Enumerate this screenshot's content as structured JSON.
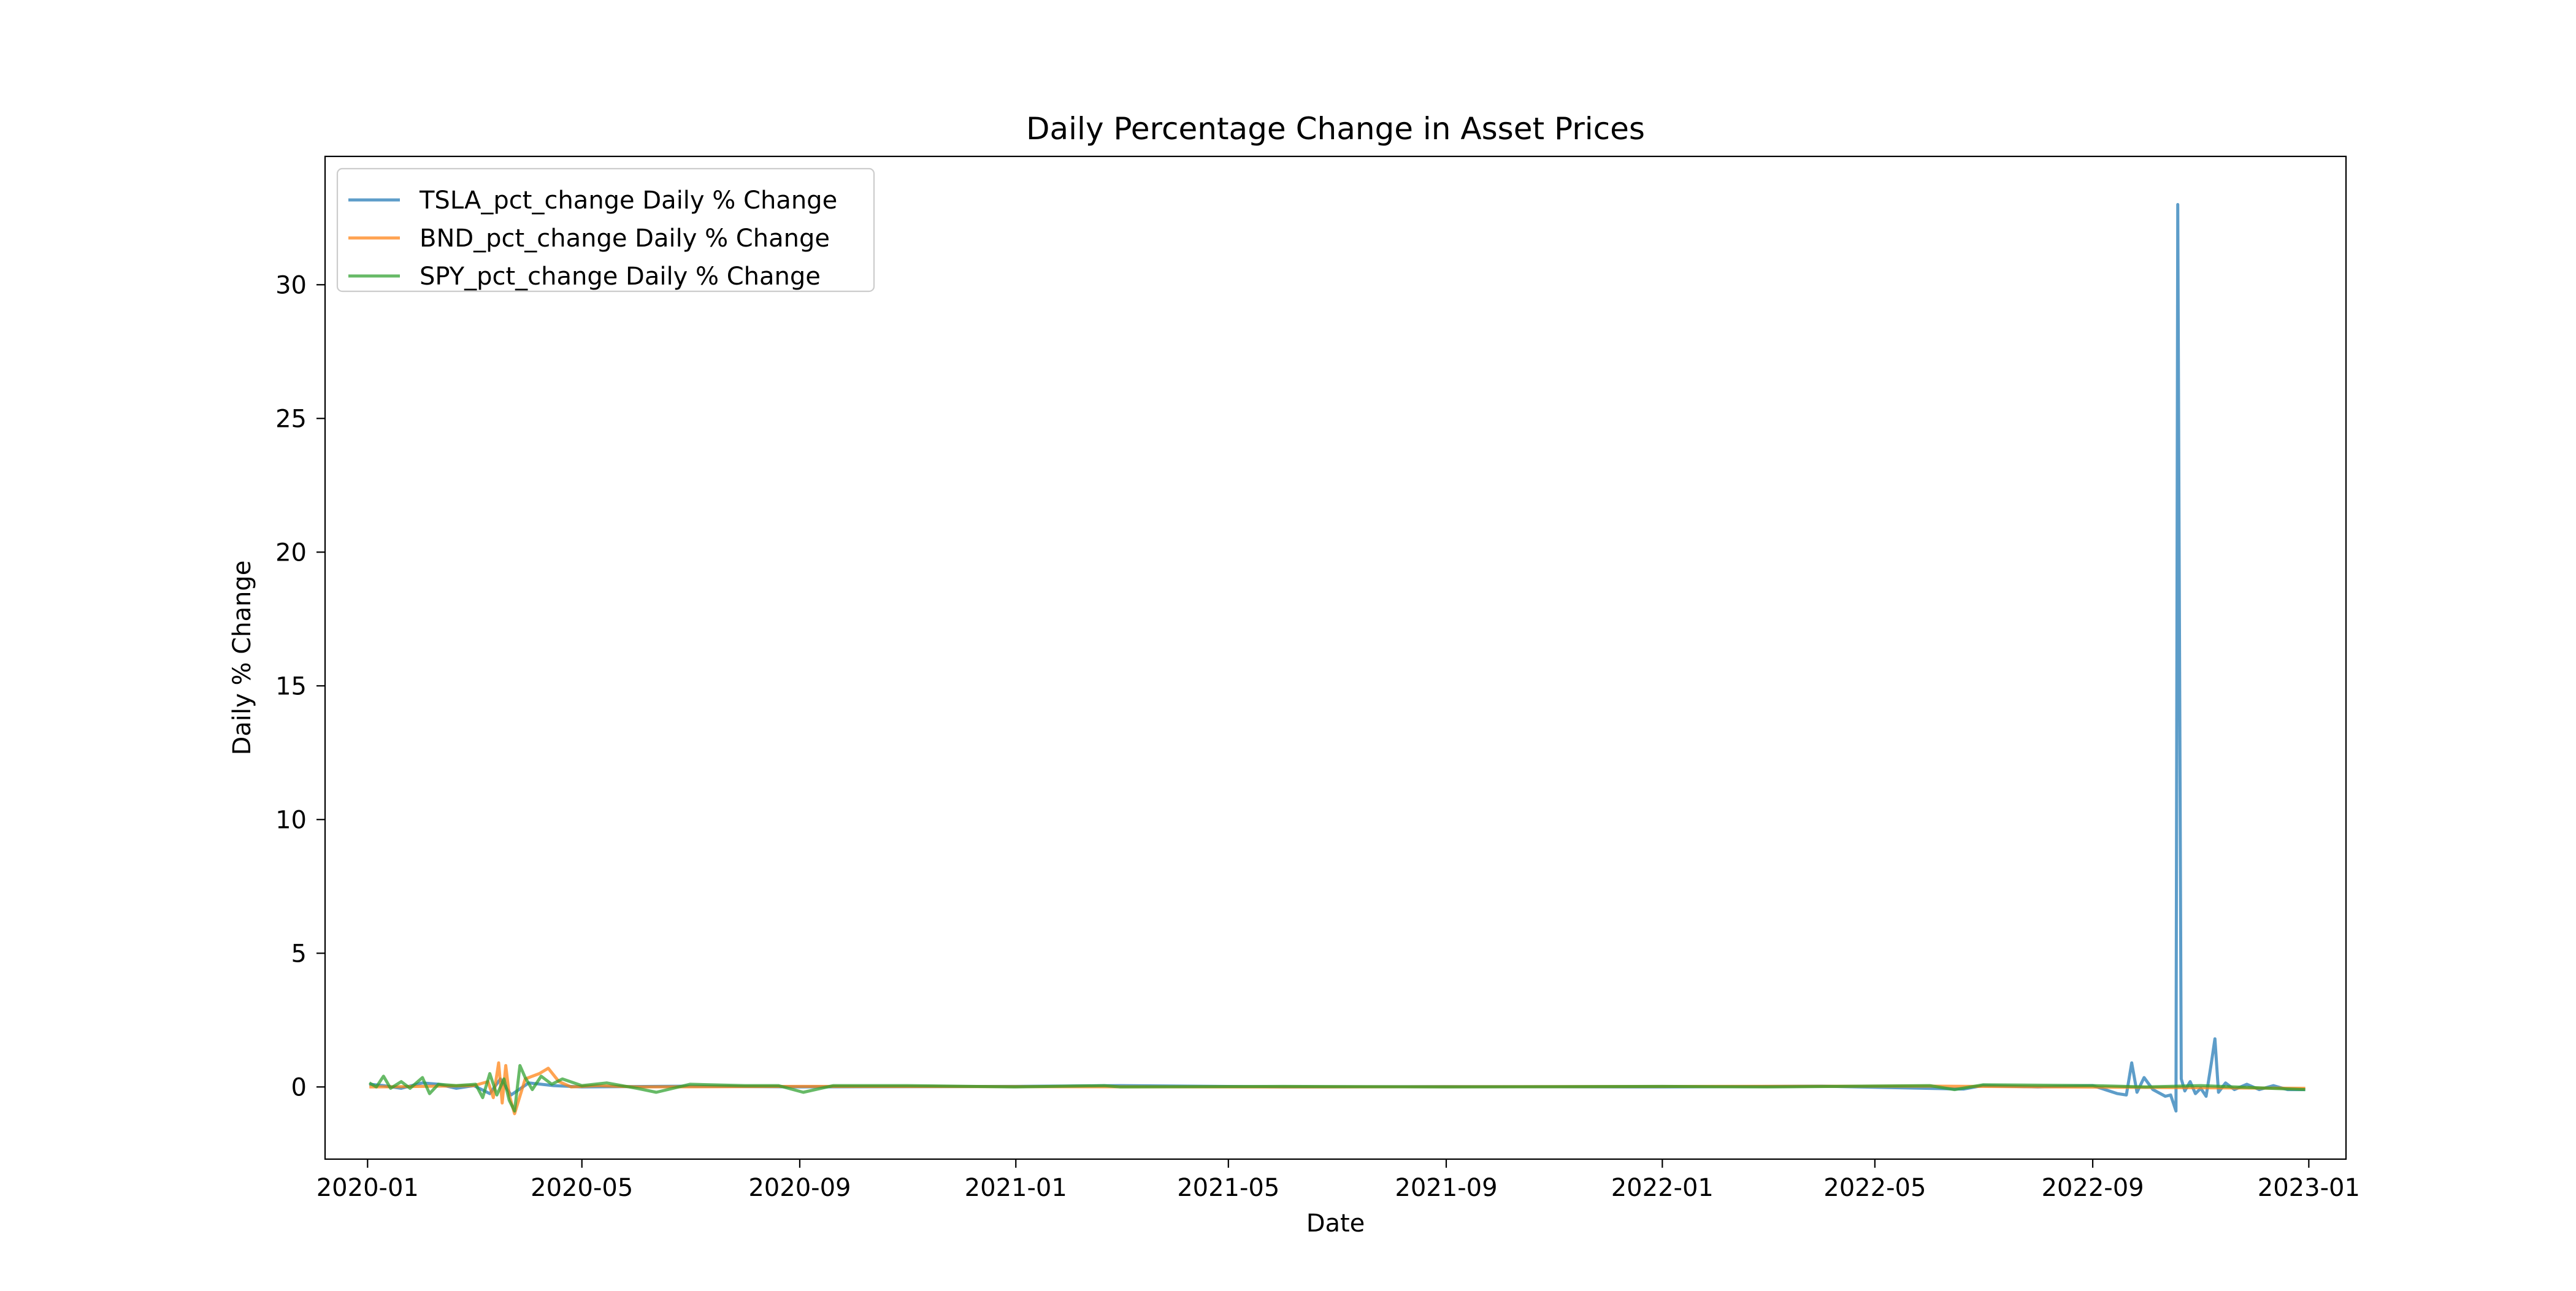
{
  "chart_data": {
    "type": "line",
    "title": "Daily Percentage Change in Asset Prices",
    "xlabel": "Date",
    "ylabel": "Daily % Change",
    "x_range": [
      "2019-12-08",
      "2023-01-22"
    ],
    "ylim": [
      -2.7,
      34.8
    ],
    "x_ticks": [
      "2020-01-01",
      "2020-05-01",
      "2020-09-01",
      "2021-01-01",
      "2021-05-01",
      "2021-09-01",
      "2022-01-01",
      "2022-05-01",
      "2022-09-01",
      "2023-01-01"
    ],
    "x_tick_labels": [
      "2020-01",
      "2020-05",
      "2020-09",
      "2021-01",
      "2021-05",
      "2021-09",
      "2022-01",
      "2022-05",
      "2022-09",
      "2023-01"
    ],
    "y_ticks": [
      0,
      5,
      10,
      15,
      20,
      25,
      30
    ],
    "y_tick_labels": [
      "0",
      "5",
      "10",
      "15",
      "20",
      "25",
      "30"
    ],
    "grid": false,
    "legend_position": "upper-left",
    "series": [
      {
        "name": "TSLA_pct_change Daily % Change",
        "color": "#1f77b4",
        "points": [
          [
            "2020-01-02",
            0.1
          ],
          [
            "2020-01-10",
            0.05
          ],
          [
            "2020-01-20",
            -0.05
          ],
          [
            "2020-02-01",
            0.15
          ],
          [
            "2020-02-10",
            0.1
          ],
          [
            "2020-02-20",
            -0.05
          ],
          [
            "2020-03-01",
            0.05
          ],
          [
            "2020-03-10",
            -0.25
          ],
          [
            "2020-03-16",
            0.3
          ],
          [
            "2020-03-22",
            -0.3
          ],
          [
            "2020-04-01",
            0.15
          ],
          [
            "2020-04-15",
            0.05
          ],
          [
            "2020-05-01",
            0.0
          ],
          [
            "2020-07-01",
            0.03
          ],
          [
            "2020-09-01",
            0.0
          ],
          [
            "2021-01-01",
            0.02
          ],
          [
            "2021-03-01",
            0.05
          ],
          [
            "2021-06-01",
            0.0
          ],
          [
            "2021-09-01",
            0.01
          ],
          [
            "2022-01-01",
            0.0
          ],
          [
            "2022-04-01",
            0.03
          ],
          [
            "2022-06-20",
            -0.08
          ],
          [
            "2022-07-01",
            0.05
          ],
          [
            "2022-08-01",
            0.0
          ],
          [
            "2022-09-01",
            0.05
          ],
          [
            "2022-09-15",
            -0.25
          ],
          [
            "2022-09-20",
            -0.3
          ],
          [
            "2022-09-23",
            0.9
          ],
          [
            "2022-09-26",
            -0.2
          ],
          [
            "2022-09-30",
            0.35
          ],
          [
            "2022-10-05",
            -0.1
          ],
          [
            "2022-10-12",
            -0.35
          ],
          [
            "2022-10-15",
            -0.3
          ],
          [
            "2022-10-18",
            -0.9
          ],
          [
            "2022-10-19",
            33.0
          ],
          [
            "2022-10-21",
            0.3
          ],
          [
            "2022-10-23",
            -0.15
          ],
          [
            "2022-10-26",
            0.2
          ],
          [
            "2022-10-29",
            -0.25
          ],
          [
            "2022-11-01",
            -0.05
          ],
          [
            "2022-11-04",
            -0.35
          ],
          [
            "2022-11-07",
            0.9
          ],
          [
            "2022-11-09",
            1.8
          ],
          [
            "2022-11-11",
            -0.2
          ],
          [
            "2022-11-15",
            0.15
          ],
          [
            "2022-11-20",
            -0.1
          ],
          [
            "2022-11-27",
            0.1
          ],
          [
            "2022-12-04",
            -0.1
          ],
          [
            "2022-12-12",
            0.05
          ],
          [
            "2022-12-20",
            -0.1
          ],
          [
            "2022-12-30",
            -0.1
          ]
        ]
      },
      {
        "name": "BND_pct_change Daily % Change",
        "color": "#ff7f0e",
        "points": [
          [
            "2020-01-02",
            0.0
          ],
          [
            "2020-02-01",
            0.02
          ],
          [
            "2020-03-01",
            0.05
          ],
          [
            "2020-03-09",
            0.2
          ],
          [
            "2020-03-12",
            -0.4
          ],
          [
            "2020-03-15",
            0.9
          ],
          [
            "2020-03-17",
            -0.6
          ],
          [
            "2020-03-19",
            0.8
          ],
          [
            "2020-03-21",
            -0.3
          ],
          [
            "2020-03-24",
            -1.0
          ],
          [
            "2020-03-30",
            0.3
          ],
          [
            "2020-04-07",
            0.5
          ],
          [
            "2020-04-12",
            0.7
          ],
          [
            "2020-04-18",
            0.2
          ],
          [
            "2020-04-25",
            0.0
          ],
          [
            "2020-05-10",
            0.05
          ],
          [
            "2020-06-01",
            0.0
          ],
          [
            "2020-09-01",
            0.02
          ],
          [
            "2021-06-01",
            0.0
          ],
          [
            "2022-06-01",
            0.03
          ],
          [
            "2022-12-30",
            -0.05
          ]
        ]
      },
      {
        "name": "SPY_pct_change Daily % Change",
        "color": "#2ca02c",
        "points": [
          [
            "2020-01-02",
            0.15
          ],
          [
            "2020-01-06",
            0.0
          ],
          [
            "2020-01-10",
            0.4
          ],
          [
            "2020-01-14",
            -0.05
          ],
          [
            "2020-01-20",
            0.2
          ],
          [
            "2020-01-25",
            -0.05
          ],
          [
            "2020-02-01",
            0.35
          ],
          [
            "2020-02-05",
            -0.25
          ],
          [
            "2020-02-10",
            0.1
          ],
          [
            "2020-02-20",
            0.05
          ],
          [
            "2020-03-02",
            0.1
          ],
          [
            "2020-03-06",
            -0.4
          ],
          [
            "2020-03-10",
            0.5
          ],
          [
            "2020-03-14",
            -0.3
          ],
          [
            "2020-03-18",
            0.3
          ],
          [
            "2020-03-21",
            -0.5
          ],
          [
            "2020-03-24",
            -0.9
          ],
          [
            "2020-03-27",
            0.8
          ],
          [
            "2020-03-30",
            0.35
          ],
          [
            "2020-04-03",
            -0.1
          ],
          [
            "2020-04-08",
            0.4
          ],
          [
            "2020-04-14",
            0.1
          ],
          [
            "2020-04-20",
            0.3
          ],
          [
            "2020-05-01",
            0.05
          ],
          [
            "2020-05-15",
            0.15
          ],
          [
            "2020-06-01",
            -0.05
          ],
          [
            "2020-06-12",
            -0.2
          ],
          [
            "2020-07-01",
            0.1
          ],
          [
            "2020-08-01",
            0.05
          ],
          [
            "2020-08-20",
            0.05
          ],
          [
            "2020-09-03",
            -0.2
          ],
          [
            "2020-09-20",
            0.05
          ],
          [
            "2020-11-01",
            0.05
          ],
          [
            "2021-01-01",
            0.0
          ],
          [
            "2021-02-20",
            0.05
          ],
          [
            "2021-03-01",
            0.0
          ],
          [
            "2021-06-01",
            0.02
          ],
          [
            "2021-09-01",
            0.0
          ],
          [
            "2022-01-01",
            0.02
          ],
          [
            "2022-03-01",
            0.0
          ],
          [
            "2022-06-01",
            0.05
          ],
          [
            "2022-06-15",
            -0.1
          ],
          [
            "2022-07-01",
            0.08
          ],
          [
            "2022-09-01",
            0.05
          ],
          [
            "2022-10-01",
            0.0
          ],
          [
            "2022-11-01",
            0.05
          ],
          [
            "2022-12-30",
            -0.1
          ]
        ]
      }
    ]
  }
}
